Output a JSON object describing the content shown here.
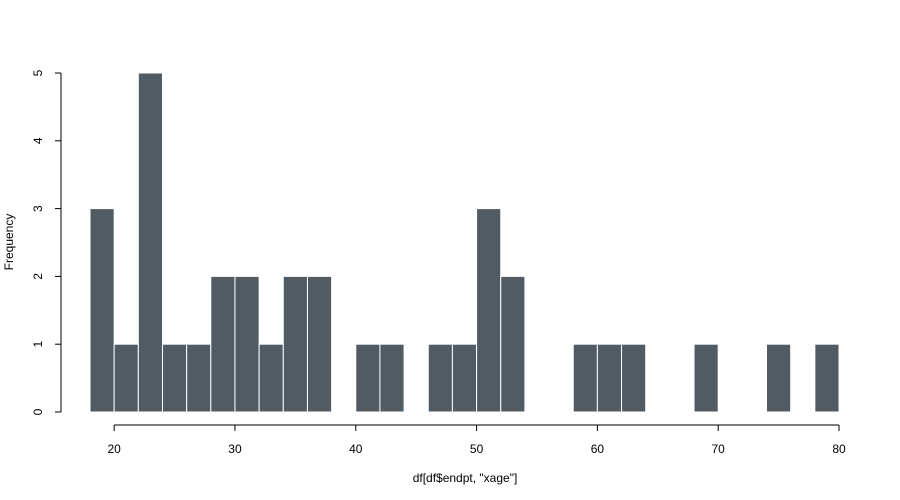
{
  "chart_data": {
    "type": "bar",
    "xlabel": "df[df$endpt, \"xage\"]",
    "ylabel": "Frequency",
    "bin_width": 2,
    "bins": [
      {
        "start": 18,
        "end": 20,
        "count": 3
      },
      {
        "start": 20,
        "end": 22,
        "count": 1
      },
      {
        "start": 22,
        "end": 24,
        "count": 5
      },
      {
        "start": 24,
        "end": 26,
        "count": 1
      },
      {
        "start": 26,
        "end": 28,
        "count": 1
      },
      {
        "start": 28,
        "end": 30,
        "count": 2
      },
      {
        "start": 30,
        "end": 32,
        "count": 2
      },
      {
        "start": 32,
        "end": 34,
        "count": 1
      },
      {
        "start": 34,
        "end": 36,
        "count": 2
      },
      {
        "start": 36,
        "end": 38,
        "count": 2
      },
      {
        "start": 38,
        "end": 40,
        "count": 0
      },
      {
        "start": 40,
        "end": 42,
        "count": 1
      },
      {
        "start": 42,
        "end": 44,
        "count": 1
      },
      {
        "start": 44,
        "end": 46,
        "count": 0
      },
      {
        "start": 46,
        "end": 48,
        "count": 1
      },
      {
        "start": 48,
        "end": 50,
        "count": 1
      },
      {
        "start": 50,
        "end": 52,
        "count": 3
      },
      {
        "start": 52,
        "end": 54,
        "count": 2
      },
      {
        "start": 54,
        "end": 56,
        "count": 0
      },
      {
        "start": 56,
        "end": 58,
        "count": 0
      },
      {
        "start": 58,
        "end": 60,
        "count": 1
      },
      {
        "start": 60,
        "end": 62,
        "count": 1
      },
      {
        "start": 62,
        "end": 64,
        "count": 1
      },
      {
        "start": 64,
        "end": 66,
        "count": 0
      },
      {
        "start": 66,
        "end": 68,
        "count": 0
      },
      {
        "start": 68,
        "end": 70,
        "count": 1
      },
      {
        "start": 70,
        "end": 72,
        "count": 0
      },
      {
        "start": 72,
        "end": 74,
        "count": 0
      },
      {
        "start": 74,
        "end": 76,
        "count": 1
      },
      {
        "start": 76,
        "end": 78,
        "count": 0
      },
      {
        "start": 78,
        "end": 80,
        "count": 1
      }
    ],
    "x_ticks": [
      20,
      30,
      40,
      50,
      60,
      70,
      80
    ],
    "y_ticks": [
      0,
      1,
      2,
      3,
      4,
      5
    ],
    "xlim": [
      18,
      80
    ],
    "ylim": [
      0,
      5
    ],
    "grid": false,
    "bar_color": "#515b63",
    "bar_border_color": "#ffffff"
  }
}
